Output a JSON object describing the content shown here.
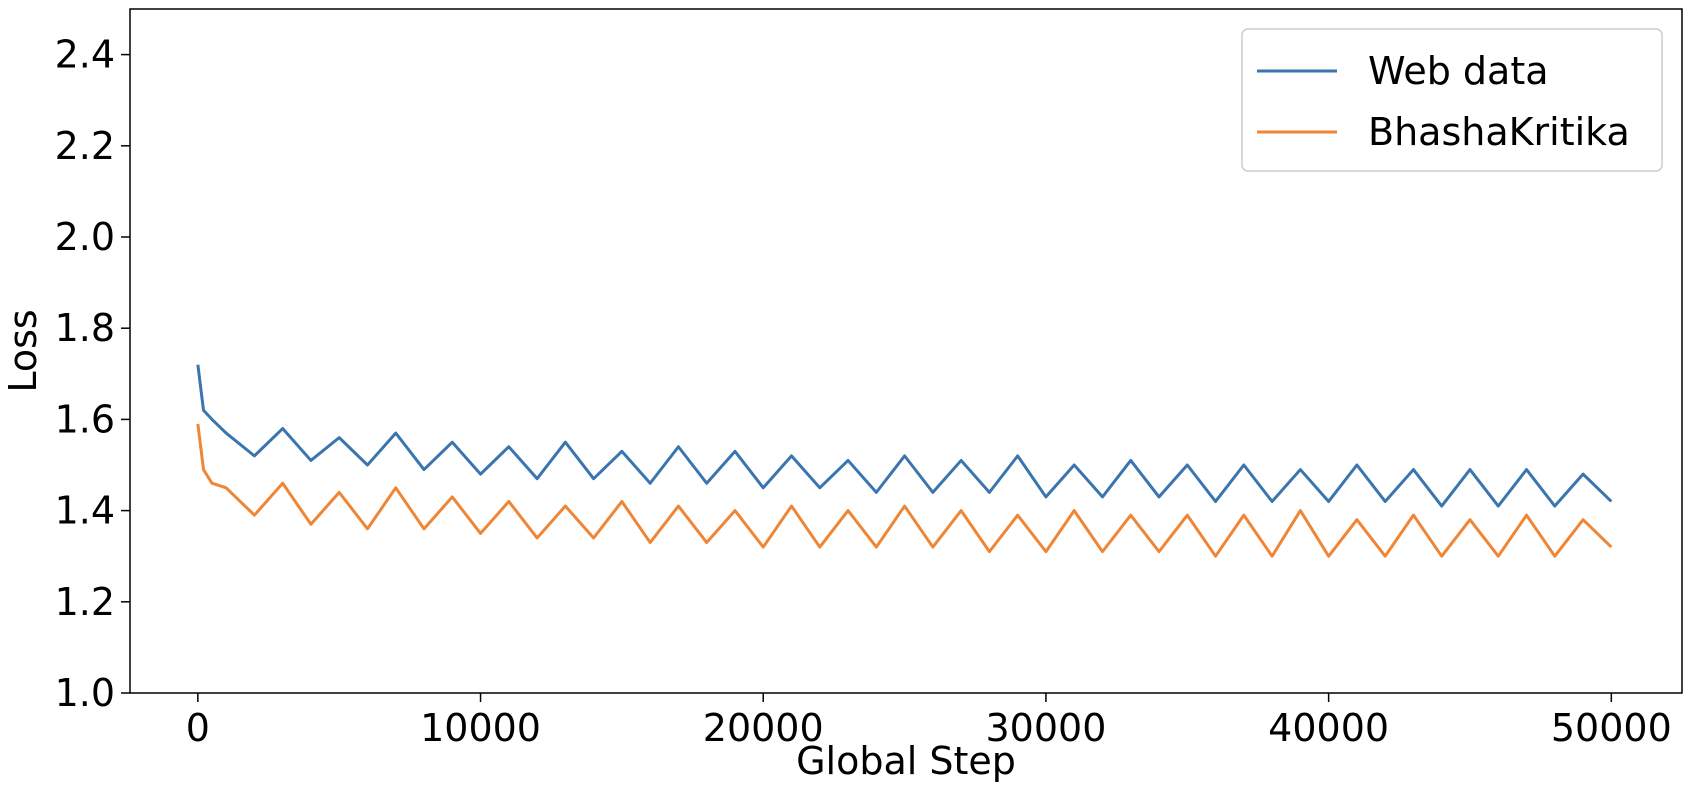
{
  "chart_data": {
    "type": "line",
    "x_label": "Global Step",
    "y_label": "Loss",
    "x": [
      0,
      200,
      500,
      1000,
      2000,
      3000,
      4000,
      5000,
      6000,
      7000,
      8000,
      9000,
      10000,
      11000,
      12000,
      13000,
      14000,
      15000,
      16000,
      17000,
      18000,
      19000,
      20000,
      21000,
      22000,
      23000,
      24000,
      25000,
      26000,
      27000,
      28000,
      29000,
      30000,
      31000,
      32000,
      33000,
      34000,
      35000,
      36000,
      37000,
      38000,
      39000,
      40000,
      41000,
      42000,
      43000,
      44000,
      45000,
      46000,
      47000,
      48000,
      49000,
      50000
    ],
    "series": [
      {
        "name": "Web data",
        "color": "#3a75af",
        "values": [
          1.72,
          1.62,
          1.6,
          1.57,
          1.52,
          1.58,
          1.51,
          1.56,
          1.5,
          1.57,
          1.49,
          1.55,
          1.48,
          1.54,
          1.47,
          1.55,
          1.47,
          1.53,
          1.46,
          1.54,
          1.46,
          1.53,
          1.45,
          1.52,
          1.45,
          1.51,
          1.44,
          1.52,
          1.44,
          1.51,
          1.44,
          1.52,
          1.43,
          1.5,
          1.43,
          1.51,
          1.43,
          1.5,
          1.42,
          1.5,
          1.42,
          1.49,
          1.42,
          1.5,
          1.42,
          1.49,
          1.41,
          1.49,
          1.41,
          1.49,
          1.41,
          1.48,
          1.42
        ]
      },
      {
        "name": "BhashaKritika",
        "color": "#ef8636",
        "values": [
          1.59,
          1.49,
          1.46,
          1.45,
          1.39,
          1.46,
          1.37,
          1.44,
          1.36,
          1.45,
          1.36,
          1.43,
          1.35,
          1.42,
          1.34,
          1.41,
          1.34,
          1.42,
          1.33,
          1.41,
          1.33,
          1.4,
          1.32,
          1.41,
          1.32,
          1.4,
          1.32,
          1.41,
          1.32,
          1.4,
          1.31,
          1.39,
          1.31,
          1.4,
          1.31,
          1.39,
          1.31,
          1.39,
          1.3,
          1.39,
          1.3,
          1.4,
          1.3,
          1.38,
          1.3,
          1.39,
          1.3,
          1.38,
          1.3,
          1.39,
          1.3,
          1.38,
          1.32
        ]
      }
    ],
    "xlim": [
      -2400,
      52500
    ],
    "ylim": [
      1.0,
      2.5
    ],
    "xticks": [
      0,
      10000,
      20000,
      30000,
      40000,
      50000
    ],
    "yticks": [
      {
        "value": 1,
        "label": "1.0"
      },
      1.2,
      1.4,
      1.6,
      1.8,
      {
        "value": 2,
        "label": "2.0"
      },
      2.2,
      2.4
    ],
    "grid": false,
    "legend": "upper right"
  }
}
